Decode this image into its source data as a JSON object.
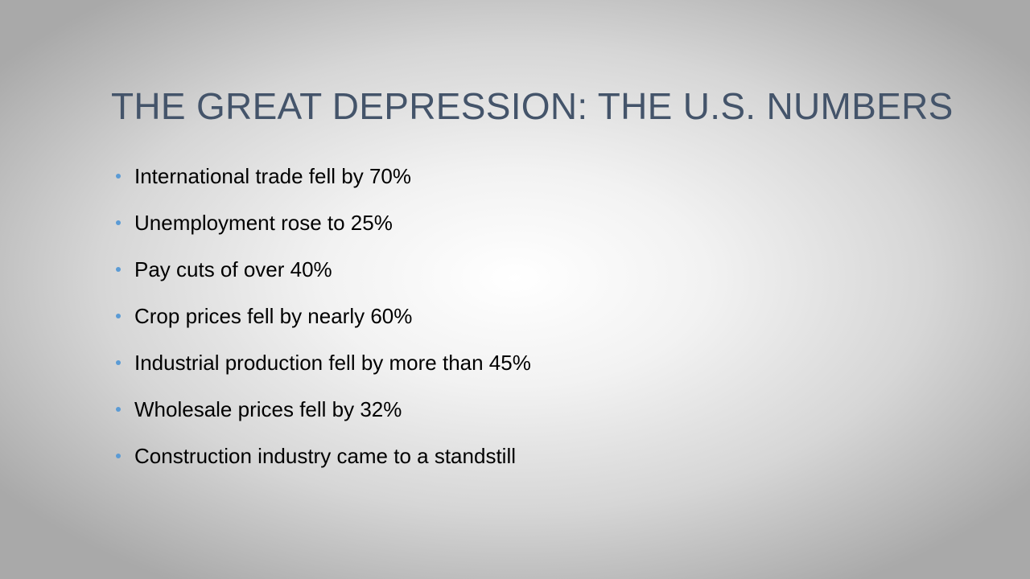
{
  "slide": {
    "title": "THE GREAT DEPRESSION: THE U.S. NUMBERS",
    "bullets": [
      "International trade fell by 70%",
      "Unemployment rose to 25%",
      "Pay cuts of over 40%",
      "Crop prices fell by nearly 60%",
      "Industrial production fell by more than 45%",
      "Wholesale prices fell by 32%",
      "Construction industry came to a standstill"
    ]
  },
  "colors": {
    "title": "#44546a",
    "bullet_marker": "#5b9bd5",
    "body_text": "#000000"
  }
}
